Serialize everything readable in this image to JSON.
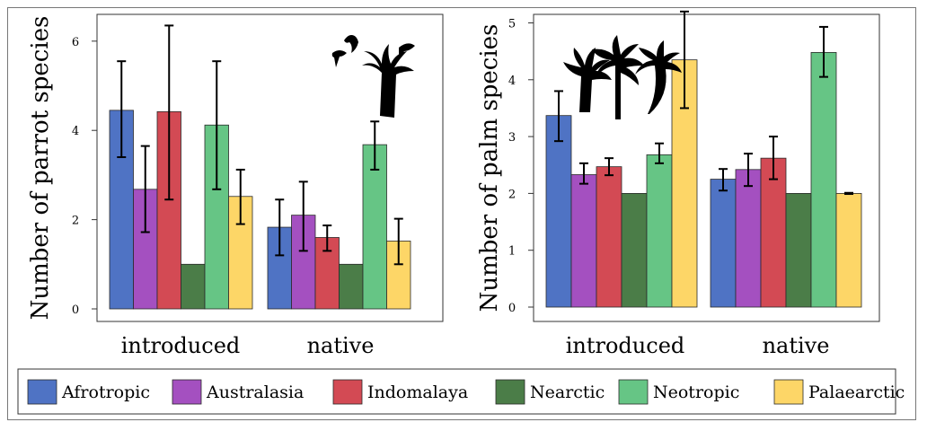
{
  "chart_data": [
    {
      "type": "bar",
      "ylabel": "Number of parrot species",
      "xlabel": "",
      "categories": [
        "introduced",
        "native"
      ],
      "ylim": [
        0,
        6.6
      ],
      "yticks": [
        "0",
        "2",
        "4",
        "6"
      ],
      "series": [
        {
          "name": "Afrotropic",
          "values": [
            4.45,
            1.83
          ],
          "err_low": [
            3.4,
            1.2
          ],
          "err_high": [
            5.55,
            2.45
          ]
        },
        {
          "name": "Australasia",
          "values": [
            2.68,
            2.1
          ],
          "err_low": [
            1.72,
            1.3
          ],
          "err_high": [
            3.65,
            2.85
          ]
        },
        {
          "name": "Indomalaya",
          "values": [
            4.42,
            1.6
          ],
          "err_low": [
            2.45,
            1.3
          ],
          "err_high": [
            6.35,
            1.87
          ]
        },
        {
          "name": "Nearctic",
          "values": [
            1.0,
            1.0
          ]
        },
        {
          "name": "Neotropic",
          "values": [
            4.12,
            3.68
          ],
          "err_low": [
            2.68,
            3.12
          ],
          "err_high": [
            5.55,
            4.2
          ]
        },
        {
          "name": "Palaearctic",
          "values": [
            2.52,
            1.52
          ],
          "err_low": [
            1.9,
            1.0
          ],
          "err_high": [
            3.12,
            2.02
          ]
        }
      ]
    },
    {
      "type": "bar",
      "ylabel": "Number of palm species",
      "xlabel": "",
      "categories": [
        "introduced",
        "native"
      ],
      "ylim": [
        0,
        5.15
      ],
      "yticks": [
        "0",
        "1",
        "2",
        "3",
        "4",
        "5"
      ],
      "series": [
        {
          "name": "Afrotropic",
          "values": [
            3.37,
            2.25
          ],
          "err_low": [
            2.92,
            2.05
          ],
          "err_high": [
            3.8,
            2.43
          ]
        },
        {
          "name": "Australasia",
          "values": [
            2.33,
            2.42
          ],
          "err_low": [
            2.17,
            2.13
          ],
          "err_high": [
            2.53,
            2.7
          ]
        },
        {
          "name": "Indomalaya",
          "values": [
            2.47,
            2.62
          ],
          "err_low": [
            2.32,
            2.25
          ],
          "err_high": [
            2.62,
            3.0
          ]
        },
        {
          "name": "Nearctic",
          "values": [
            2.0,
            2.0
          ]
        },
        {
          "name": "Neotropic",
          "values": [
            2.68,
            4.48
          ],
          "err_low": [
            2.53,
            4.05
          ],
          "err_high": [
            2.88,
            4.93
          ]
        },
        {
          "name": "Palaearctic",
          "values": [
            4.35,
            2.0
          ],
          "err_low": [
            3.5,
            1.99
          ],
          "err_high": [
            5.2,
            2.01
          ]
        }
      ]
    }
  ],
  "legend": {
    "entries": [
      {
        "name": "Afrotropic",
        "color": "#4f73c4"
      },
      {
        "name": "Australasia",
        "color": "#a450c0"
      },
      {
        "name": "Indomalaya",
        "color": "#d34a54"
      },
      {
        "name": "Nearctic",
        "color": "#4b7d48"
      },
      {
        "name": "Neotropic",
        "color": "#66c585"
      },
      {
        "name": "Palaearctic",
        "color": "#fdd667"
      }
    ]
  }
}
